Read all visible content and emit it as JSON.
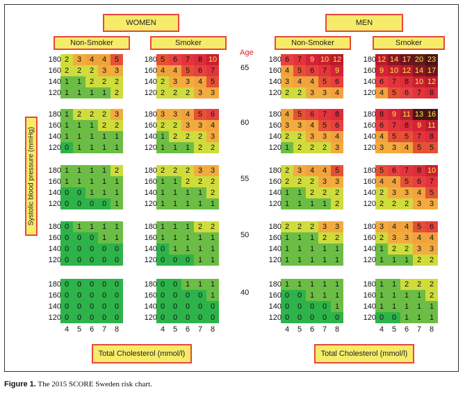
{
  "chart_data": {
    "type": "table",
    "title": "The 2015 SCORE Sweden risk chart",
    "sex_labels": [
      "WOMEN",
      "MEN"
    ],
    "smoking_labels": [
      "Non-Smoker",
      "Smoker"
    ],
    "age_title": "Age",
    "ages": [
      "65",
      "60",
      "55",
      "50",
      "40"
    ],
    "bp_levels": [
      "180",
      "160",
      "140",
      "120"
    ],
    "cholesterol_levels": [
      "4",
      "5",
      "6",
      "7",
      "8"
    ],
    "y_axis_label": "Systolic blood pressure (mmHg)",
    "x_axis_label": "Total Cholesterol (mmol/l)",
    "color_scale": {
      "0": "#2db34a",
      "1": "#6cbd45",
      "2": "#cfdc3c",
      "3": "#f3ab3f",
      "4": "#f0a33d",
      "5": "#e55135",
      "6": "#e84040",
      "7": "#e3343c",
      "8": "#dd2c3a",
      "9": "#d52238",
      "10": "#c81f32",
      "11": "#b51e2c",
      "12": "#b71c2b",
      "14": "#8a1624",
      "17": "#6e1420",
      "20": "#5e1c1c",
      "23": "#4a1414"
    },
    "panels": [
      {
        "sex": "WOMEN",
        "smoking": "Non-Smoker",
        "age": "65",
        "values": [
          [
            2,
            3,
            4,
            4,
            5
          ],
          [
            2,
            2,
            2,
            3,
            3
          ],
          [
            1,
            1,
            2,
            2,
            2
          ],
          [
            1,
            1,
            1,
            1,
            2
          ]
        ]
      },
      {
        "sex": "WOMEN",
        "smoking": "Smoker",
        "age": "65",
        "values": [
          [
            5,
            6,
            7,
            8,
            10
          ],
          [
            4,
            4,
            5,
            6,
            7
          ],
          [
            2,
            3,
            3,
            4,
            5
          ],
          [
            2,
            2,
            2,
            3,
            3
          ]
        ]
      },
      {
        "sex": "MEN",
        "smoking": "Non-Smoker",
        "age": "65",
        "values": [
          [
            6,
            7,
            9,
            10,
            12
          ],
          [
            4,
            5,
            6,
            7,
            9
          ],
          [
            3,
            4,
            4,
            5,
            6
          ],
          [
            2,
            2,
            3,
            3,
            4
          ]
        ]
      },
      {
        "sex": "MEN",
        "smoking": "Smoker",
        "age": "65",
        "values": [
          [
            12,
            14,
            17,
            20,
            23
          ],
          [
            9,
            10,
            12,
            14,
            17
          ],
          [
            6,
            7,
            8,
            10,
            12
          ],
          [
            4,
            5,
            6,
            7,
            8
          ]
        ]
      },
      {
        "sex": "WOMEN",
        "smoking": "Non-Smoker",
        "age": "60",
        "values": [
          [
            1,
            2,
            2,
            2,
            3
          ],
          [
            1,
            1,
            1,
            2,
            2
          ],
          [
            1,
            1,
            1,
            1,
            1
          ],
          [
            0,
            1,
            1,
            1,
            1
          ]
        ]
      },
      {
        "sex": "WOMEN",
        "smoking": "Smoker",
        "age": "60",
        "values": [
          [
            3,
            3,
            4,
            5,
            6
          ],
          [
            2,
            2,
            3,
            3,
            4
          ],
          [
            1,
            2,
            2,
            2,
            3
          ],
          [
            1,
            1,
            1,
            2,
            2
          ]
        ]
      },
      {
        "sex": "MEN",
        "smoking": "Non-Smoker",
        "age": "60",
        "values": [
          [
            4,
            5,
            6,
            7,
            8
          ],
          [
            3,
            3,
            4,
            5,
            6
          ],
          [
            2,
            2,
            3,
            3,
            4
          ],
          [
            1,
            2,
            2,
            2,
            3
          ]
        ]
      },
      {
        "sex": "MEN",
        "smoking": "Smoker",
        "age": "60",
        "values": [
          [
            8,
            9,
            11,
            13,
            16
          ],
          [
            6,
            7,
            8,
            9,
            11
          ],
          [
            4,
            5,
            5,
            7,
            8
          ],
          [
            3,
            3,
            4,
            5,
            5
          ]
        ]
      },
      {
        "sex": "WOMEN",
        "smoking": "Non-Smoker",
        "age": "55",
        "values": [
          [
            1,
            1,
            1,
            1,
            2
          ],
          [
            1,
            1,
            1,
            1,
            1
          ],
          [
            0,
            0,
            1,
            1,
            1
          ],
          [
            0,
            0,
            0,
            0,
            1
          ]
        ]
      },
      {
        "sex": "WOMEN",
        "smoking": "Smoker",
        "age": "55",
        "values": [
          [
            2,
            2,
            2,
            3,
            3
          ],
          [
            1,
            1,
            2,
            2,
            2
          ],
          [
            1,
            1,
            1,
            1,
            2
          ],
          [
            1,
            1,
            1,
            1,
            1
          ]
        ]
      },
      {
        "sex": "MEN",
        "smoking": "Non-Smoker",
        "age": "55",
        "values": [
          [
            2,
            3,
            4,
            4,
            5
          ],
          [
            2,
            2,
            2,
            3,
            3
          ],
          [
            1,
            1,
            2,
            2,
            2
          ],
          [
            1,
            1,
            1,
            1,
            2
          ]
        ]
      },
      {
        "sex": "MEN",
        "smoking": "Smoker",
        "age": "55",
        "values": [
          [
            5,
            6,
            7,
            8,
            10
          ],
          [
            4,
            4,
            5,
            6,
            7
          ],
          [
            2,
            3,
            3,
            4,
            5
          ],
          [
            2,
            2,
            2,
            3,
            3
          ]
        ]
      },
      {
        "sex": "WOMEN",
        "smoking": "Non-Smoker",
        "age": "50",
        "values": [
          [
            0,
            1,
            1,
            1,
            1
          ],
          [
            0,
            0,
            0,
            1,
            1
          ],
          [
            0,
            0,
            0,
            0,
            0
          ],
          [
            0,
            0,
            0,
            0,
            0
          ]
        ]
      },
      {
        "sex": "WOMEN",
        "smoking": "Smoker",
        "age": "50",
        "values": [
          [
            1,
            1,
            1,
            2,
            2
          ],
          [
            1,
            1,
            1,
            1,
            1
          ],
          [
            0,
            1,
            1,
            1,
            1
          ],
          [
            0,
            0,
            0,
            1,
            1
          ]
        ]
      },
      {
        "sex": "MEN",
        "smoking": "Non-Smoker",
        "age": "50",
        "values": [
          [
            2,
            2,
            2,
            3,
            3
          ],
          [
            1,
            1,
            1,
            2,
            2
          ],
          [
            1,
            1,
            1,
            1,
            1
          ],
          [
            1,
            1,
            1,
            1,
            1
          ]
        ]
      },
      {
        "sex": "MEN",
        "smoking": "Smoker",
        "age": "50",
        "values": [
          [
            3,
            4,
            4,
            5,
            6
          ],
          [
            2,
            3,
            3,
            4,
            4
          ],
          [
            1,
            2,
            2,
            3,
            3
          ],
          [
            1,
            1,
            1,
            2,
            2
          ]
        ]
      },
      {
        "sex": "WOMEN",
        "smoking": "Non-Smoker",
        "age": "40",
        "values": [
          [
            0,
            0,
            0,
            0,
            0
          ],
          [
            0,
            0,
            0,
            0,
            0
          ],
          [
            0,
            0,
            0,
            0,
            0
          ],
          [
            0,
            0,
            0,
            0,
            0
          ]
        ]
      },
      {
        "sex": "WOMEN",
        "smoking": "Smoker",
        "age": "40",
        "values": [
          [
            0,
            0,
            1,
            1,
            1
          ],
          [
            0,
            0,
            0,
            0,
            1
          ],
          [
            0,
            0,
            0,
            0,
            0
          ],
          [
            0,
            0,
            0,
            0,
            0
          ]
        ]
      },
      {
        "sex": "MEN",
        "smoking": "Non-Smoker",
        "age": "40",
        "values": [
          [
            1,
            1,
            1,
            1,
            1
          ],
          [
            0,
            0,
            1,
            1,
            1
          ],
          [
            0,
            0,
            0,
            0,
            1
          ],
          [
            0,
            0,
            0,
            0,
            0
          ]
        ]
      },
      {
        "sex": "MEN",
        "smoking": "Smoker",
        "age": "40",
        "values": [
          [
            1,
            1,
            2,
            2,
            2
          ],
          [
            1,
            1,
            1,
            1,
            2
          ],
          [
            1,
            1,
            1,
            1,
            1
          ],
          [
            0,
            0,
            1,
            1,
            1
          ]
        ]
      }
    ]
  },
  "caption": {
    "prefix": "Figure 1.",
    "text": " The 2015 SCORE Sweden risk chart."
  }
}
